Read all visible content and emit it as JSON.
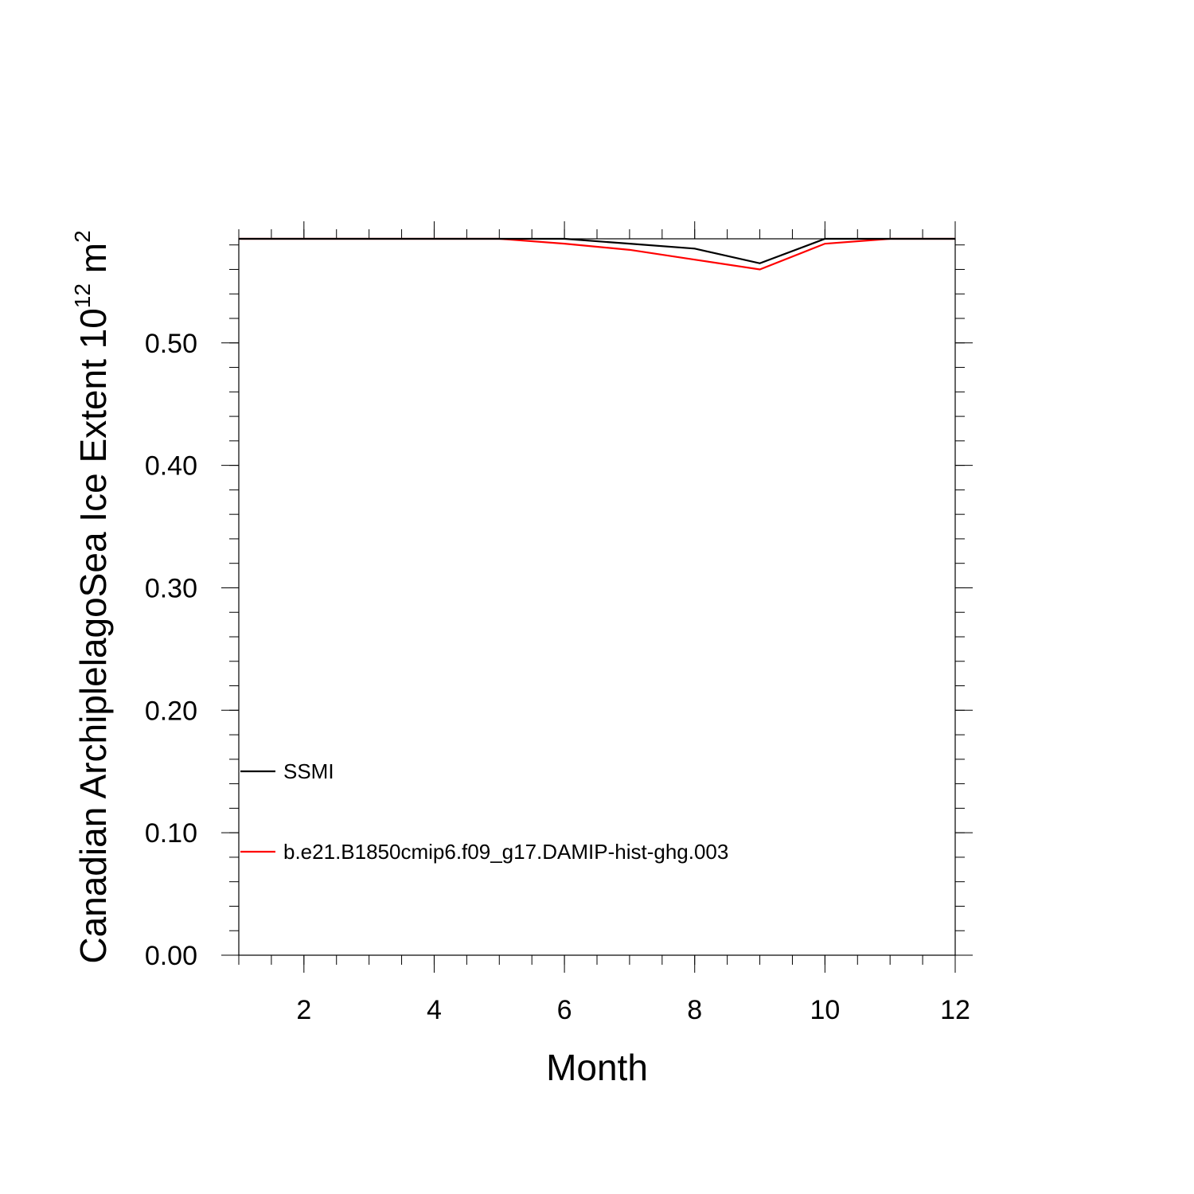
{
  "chart_data": {
    "type": "line",
    "xlabel": "Month",
    "ylabel": {
      "text": "Canadian ArchiplelagoSea Ice Extent 10",
      "superscript_1": "12",
      "middle": " m",
      "superscript_2": "2"
    },
    "xlim": [
      1,
      12
    ],
    "ylim": [
      0.0,
      0.585
    ],
    "x_ticks": [
      2,
      4,
      6,
      8,
      10,
      12
    ],
    "x_tick_labels": [
      "2",
      "4",
      "6",
      "8",
      "10",
      "12"
    ],
    "y_ticks": [
      0.0,
      0.1,
      0.2,
      0.3,
      0.4,
      0.5
    ],
    "y_tick_labels": [
      "0.00",
      "0.10",
      "0.20",
      "0.30",
      "0.40",
      "0.50"
    ],
    "x": [
      1,
      2,
      3,
      4,
      5,
      6,
      7,
      8,
      9,
      10,
      11,
      12
    ],
    "series": [
      {
        "name": "SSMI",
        "color": "#000000",
        "values": [
          0.585,
          0.585,
          0.585,
          0.585,
          0.585,
          0.585,
          0.581,
          0.577,
          0.565,
          0.585,
          0.585,
          0.585
        ]
      },
      {
        "name": "b.e21.B1850cmip6.f09_g17.DAMIP-hist-ghg.003",
        "color": "#ff0000",
        "values": [
          0.585,
          0.585,
          0.585,
          0.585,
          0.585,
          0.581,
          0.576,
          0.568,
          0.56,
          0.581,
          0.585,
          0.585
        ]
      }
    ],
    "grid": false,
    "legend_position": "lower-left"
  }
}
